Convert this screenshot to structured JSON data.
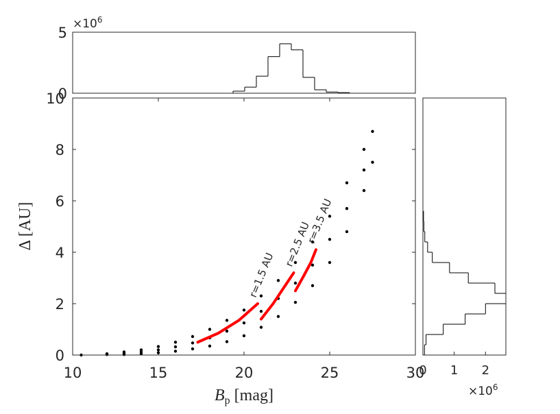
{
  "chart_data": [
    {
      "type": "scatter",
      "xlabel": {
        "symbol": "B",
        "subscript": "p",
        "unit": "[mag]"
      },
      "ylabel": "Δ [AU]",
      "xlim": [
        10,
        30
      ],
      "ylim": [
        0,
        10
      ],
      "xticks": [
        10,
        15,
        20,
        25,
        30
      ],
      "yticks": [
        0,
        2,
        4,
        6,
        8,
        10
      ],
      "points": {
        "color": "#000000",
        "x": [
          10.5,
          12,
          12,
          13,
          13,
          13,
          14,
          14,
          14,
          15,
          15,
          15,
          16,
          16,
          16,
          17,
          17,
          17,
          18,
          18,
          18,
          19,
          19,
          19,
          20,
          20,
          20,
          21,
          21,
          21,
          22,
          22,
          22,
          23,
          23,
          23,
          24,
          24,
          24,
          25,
          25,
          25,
          26,
          26,
          26,
          27,
          27,
          27,
          27.5,
          27.5
        ],
        "y": [
          0,
          0.05,
          0.02,
          0.12,
          0.06,
          0.02,
          0.2,
          0.12,
          0.05,
          0.33,
          0.2,
          0.09,
          0.5,
          0.32,
          0.15,
          0.72,
          0.47,
          0.24,
          1.0,
          0.67,
          0.35,
          1.35,
          0.93,
          0.52,
          1.75,
          1.25,
          0.75,
          2.3,
          1.7,
          1.08,
          2.9,
          2.2,
          1.5,
          3.6,
          2.8,
          2.05,
          4.4,
          3.5,
          2.7,
          5.4,
          4.5,
          3.6,
          6.7,
          5.7,
          4.8,
          8.0,
          7.2,
          6.4,
          8.7,
          7.5
        ]
      },
      "lines": [
        {
          "name": "r=1.5 AU",
          "color": "#ff0000",
          "x": [
            17.3,
            18.5,
            19.7,
            20.8
          ],
          "y": [
            0.5,
            0.85,
            1.35,
            2.0
          ]
        },
        {
          "name": "r=2.5 AU",
          "color": "#ff0000",
          "x": [
            21.0,
            21.7,
            22.4,
            22.9
          ],
          "y": [
            1.4,
            2.0,
            2.7,
            3.2
          ]
        },
        {
          "name": "r=3.5 AU",
          "color": "#ff0000",
          "x": [
            23.0,
            23.5,
            23.9,
            24.2
          ],
          "y": [
            2.5,
            3.1,
            3.6,
            4.1
          ]
        }
      ]
    },
    {
      "type": "histogram",
      "orientation": "vertical",
      "bins": [
        19.36,
        20.04,
        20.72,
        21.4,
        22.08,
        22.76,
        23.44,
        24.12,
        24.8,
        25.48,
        26.16
      ],
      "counts": [
        170000,
        500000,
        1400000,
        3000000,
        4050000,
        3550000,
        1300000,
        280000,
        100000,
        50000
      ],
      "xlim": [
        10,
        30
      ],
      "ylim": [
        0,
        5000000
      ],
      "yticks": [
        0,
        {
          "value": 5000000,
          "label": "5"
        }
      ],
      "offset_label": {
        "base": "×10",
        "exponent": "6"
      }
    },
    {
      "type": "histogram",
      "orientation": "horizontal",
      "bins": [
        0,
        0.4,
        0.8,
        1.2,
        1.6,
        2.0,
        2.4,
        2.8,
        3.2,
        3.6,
        4.0,
        4.4,
        4.8,
        5.2,
        5.6
      ],
      "counts": [
        50000,
        100000,
        650000,
        1350000,
        2000000,
        2700000,
        2300000,
        1450000,
        850000,
        300000,
        150000,
        60000,
        30000,
        20000
      ],
      "xlim": [
        0,
        2650000
      ],
      "ylim": [
        0,
        10
      ],
      "xticks": [
        0,
        {
          "value": 1000000,
          "label": "1"
        },
        {
          "value": 2000000,
          "label": "2"
        }
      ],
      "offset_label": {
        "base": "×10",
        "exponent": "6"
      }
    }
  ]
}
